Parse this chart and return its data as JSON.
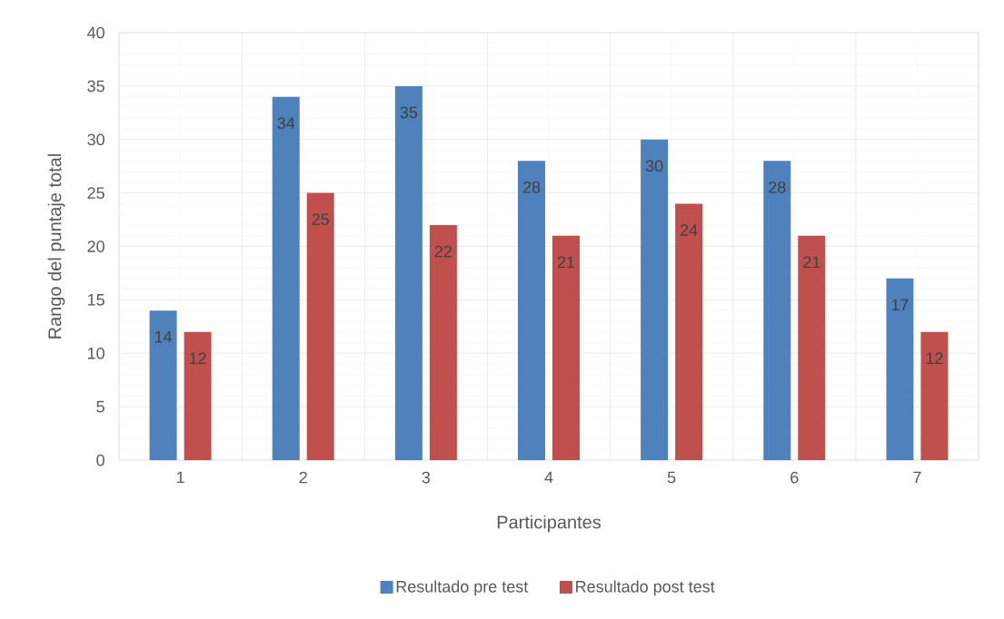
{
  "chart_data": {
    "type": "bar",
    "categories": [
      "1",
      "2",
      "3",
      "4",
      "5",
      "6",
      "7"
    ],
    "series": [
      {
        "name": "Resultado pre test",
        "color": "#4f81bd",
        "values": [
          14,
          34,
          35,
          28,
          30,
          28,
          17
        ]
      },
      {
        "name": "Resultado post test",
        "color": "#c0504d",
        "values": [
          12,
          25,
          22,
          21,
          24,
          21,
          12
        ]
      }
    ],
    "xlabel": "Participantes",
    "ylabel": "Rango del puntaje total",
    "ylim": [
      0,
      40
    ],
    "yticks": [
      0,
      5,
      10,
      15,
      20,
      25,
      30,
      35,
      40
    ],
    "grid": true,
    "legend": "bottom",
    "data_labels": true
  }
}
